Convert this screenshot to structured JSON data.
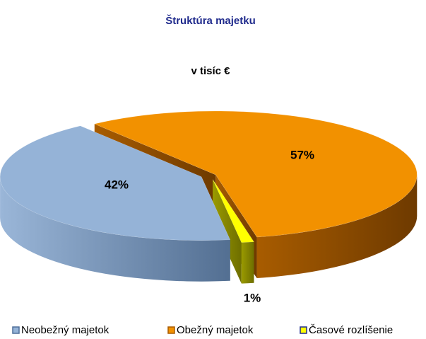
{
  "chart_data": {
    "type": "pie3d",
    "title": "Štruktúra majetku",
    "subtitle": "v tisíc €",
    "categories": [
      "Neobežný majetok",
      "Obežný majetok",
      "Časové rozlíšenie"
    ],
    "values": [
      42,
      57,
      1
    ],
    "value_labels": [
      "42%",
      "57%",
      "1%"
    ],
    "colors": [
      "#95b3d7",
      "#f29100",
      "#ffff00"
    ],
    "legend": "bottom"
  }
}
